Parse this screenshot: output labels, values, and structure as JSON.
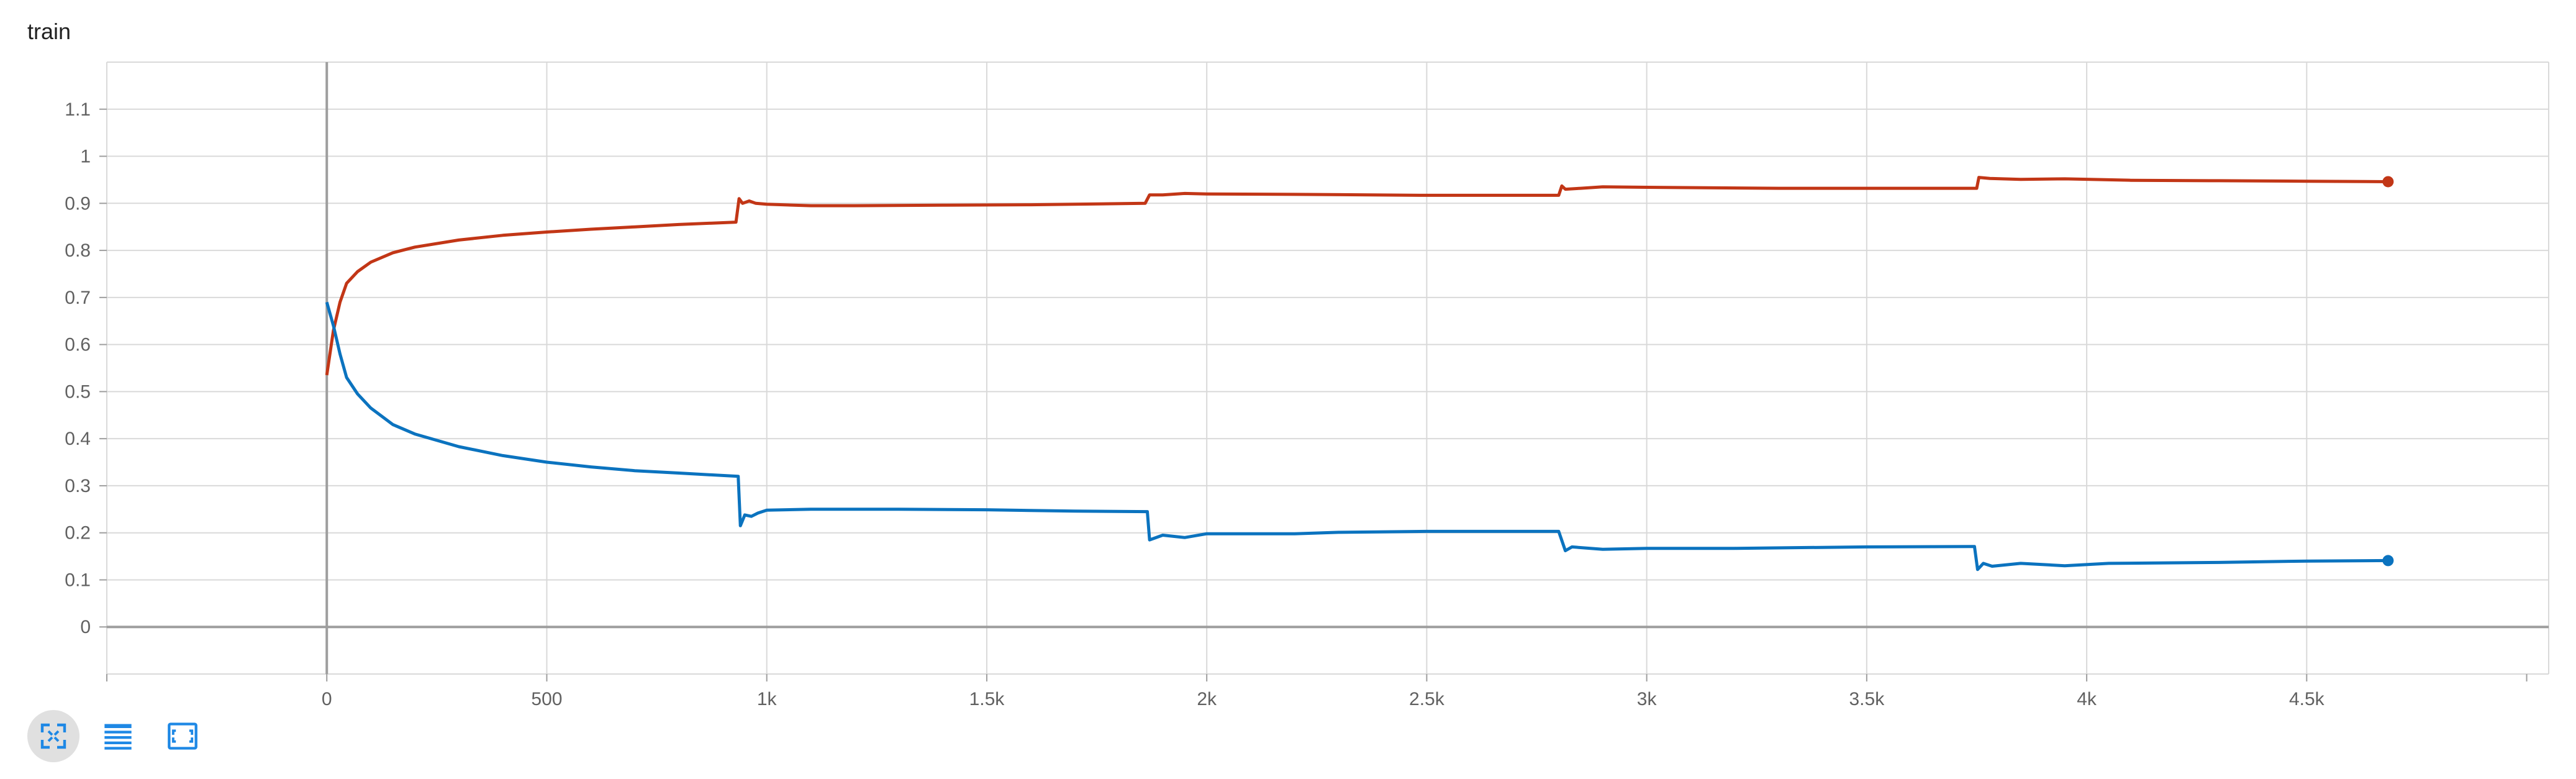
{
  "card": {
    "title": "train"
  },
  "colors": {
    "series_red": "#c23616",
    "series_blue": "#0b73bf",
    "grid": "#d9d9d9",
    "axis": "#9e9e9e",
    "toolbar_icon": "#1e88e5"
  },
  "toolbar": [
    {
      "name": "expand-icon",
      "active": true
    },
    {
      "name": "toggle-log-scale-icon",
      "active": false
    },
    {
      "name": "fit-domain-icon",
      "active": false
    }
  ],
  "chart_data": {
    "type": "line",
    "title": "train",
    "xlim": [
      -500,
      5050
    ],
    "ylim": [
      -0.1,
      1.2
    ],
    "x_ticks": [
      0,
      500,
      1000,
      1500,
      2000,
      2500,
      3000,
      3500,
      4000,
      4500
    ],
    "x_tick_labels": [
      "0",
      "500",
      "1k",
      "1.5k",
      "2k",
      "2.5k",
      "3k",
      "3.5k",
      "4k",
      "4.5k"
    ],
    "y_ticks": [
      0,
      0.1,
      0.2,
      0.3,
      0.4,
      0.5,
      0.6,
      0.7,
      0.8,
      0.9,
      1,
      1.1
    ],
    "y_tick_labels": [
      "0",
      "0.1",
      "0.2",
      "0.3",
      "0.4",
      "0.5",
      "0.6",
      "0.7",
      "0.8",
      "0.9",
      "1",
      "1.1"
    ],
    "grid": true,
    "series": [
      {
        "color": "#c23616",
        "points": [
          [
            0,
            0.535
          ],
          [
            15,
            0.63
          ],
          [
            30,
            0.69
          ],
          [
            45,
            0.73
          ],
          [
            70,
            0.755
          ],
          [
            100,
            0.775
          ],
          [
            150,
            0.795
          ],
          [
            200,
            0.807
          ],
          [
            300,
            0.822
          ],
          [
            400,
            0.832
          ],
          [
            500,
            0.839
          ],
          [
            600,
            0.845
          ],
          [
            700,
            0.85
          ],
          [
            800,
            0.855
          ],
          [
            930,
            0.86
          ],
          [
            937,
            0.91
          ],
          [
            945,
            0.9
          ],
          [
            960,
            0.905
          ],
          [
            975,
            0.9
          ],
          [
            1000,
            0.898
          ],
          [
            1100,
            0.895
          ],
          [
            1200,
            0.895
          ],
          [
            1400,
            0.896
          ],
          [
            1600,
            0.897
          ],
          [
            1860,
            0.9
          ],
          [
            1870,
            0.918
          ],
          [
            1900,
            0.918
          ],
          [
            1950,
            0.921
          ],
          [
            2000,
            0.92
          ],
          [
            2200,
            0.919
          ],
          [
            2500,
            0.917
          ],
          [
            2800,
            0.917
          ],
          [
            2807,
            0.937
          ],
          [
            2815,
            0.93
          ],
          [
            2850,
            0.932
          ],
          [
            2900,
            0.935
          ],
          [
            3000,
            0.934
          ],
          [
            3300,
            0.932
          ],
          [
            3600,
            0.932
          ],
          [
            3750,
            0.932
          ],
          [
            3755,
            0.955
          ],
          [
            3780,
            0.953
          ],
          [
            3850,
            0.951
          ],
          [
            3950,
            0.952
          ],
          [
            4100,
            0.949
          ],
          [
            4300,
            0.948
          ],
          [
            4500,
            0.947
          ],
          [
            4685,
            0.946
          ]
        ]
      },
      {
        "color": "#0b73bf",
        "points": [
          [
            0,
            0.69
          ],
          [
            15,
            0.64
          ],
          [
            30,
            0.58
          ],
          [
            45,
            0.53
          ],
          [
            70,
            0.495
          ],
          [
            100,
            0.465
          ],
          [
            150,
            0.43
          ],
          [
            200,
            0.41
          ],
          [
            300,
            0.383
          ],
          [
            400,
            0.364
          ],
          [
            500,
            0.35
          ],
          [
            600,
            0.34
          ],
          [
            700,
            0.332
          ],
          [
            800,
            0.327
          ],
          [
            935,
            0.32
          ],
          [
            940,
            0.215
          ],
          [
            950,
            0.238
          ],
          [
            965,
            0.235
          ],
          [
            980,
            0.242
          ],
          [
            1000,
            0.248
          ],
          [
            1100,
            0.25
          ],
          [
            1300,
            0.25
          ],
          [
            1500,
            0.249
          ],
          [
            1700,
            0.246
          ],
          [
            1865,
            0.245
          ],
          [
            1870,
            0.185
          ],
          [
            1900,
            0.195
          ],
          [
            1950,
            0.19
          ],
          [
            2000,
            0.198
          ],
          [
            2200,
            0.198
          ],
          [
            2300,
            0.201
          ],
          [
            2500,
            0.203
          ],
          [
            2800,
            0.203
          ],
          [
            2815,
            0.162
          ],
          [
            2830,
            0.17
          ],
          [
            2900,
            0.165
          ],
          [
            3000,
            0.167
          ],
          [
            3200,
            0.167
          ],
          [
            3500,
            0.17
          ],
          [
            3745,
            0.171
          ],
          [
            3752,
            0.122
          ],
          [
            3765,
            0.135
          ],
          [
            3785,
            0.129
          ],
          [
            3850,
            0.135
          ],
          [
            3950,
            0.13
          ],
          [
            4050,
            0.135
          ],
          [
            4300,
            0.137
          ],
          [
            4500,
            0.14
          ],
          [
            4685,
            0.141
          ]
        ]
      }
    ]
  }
}
